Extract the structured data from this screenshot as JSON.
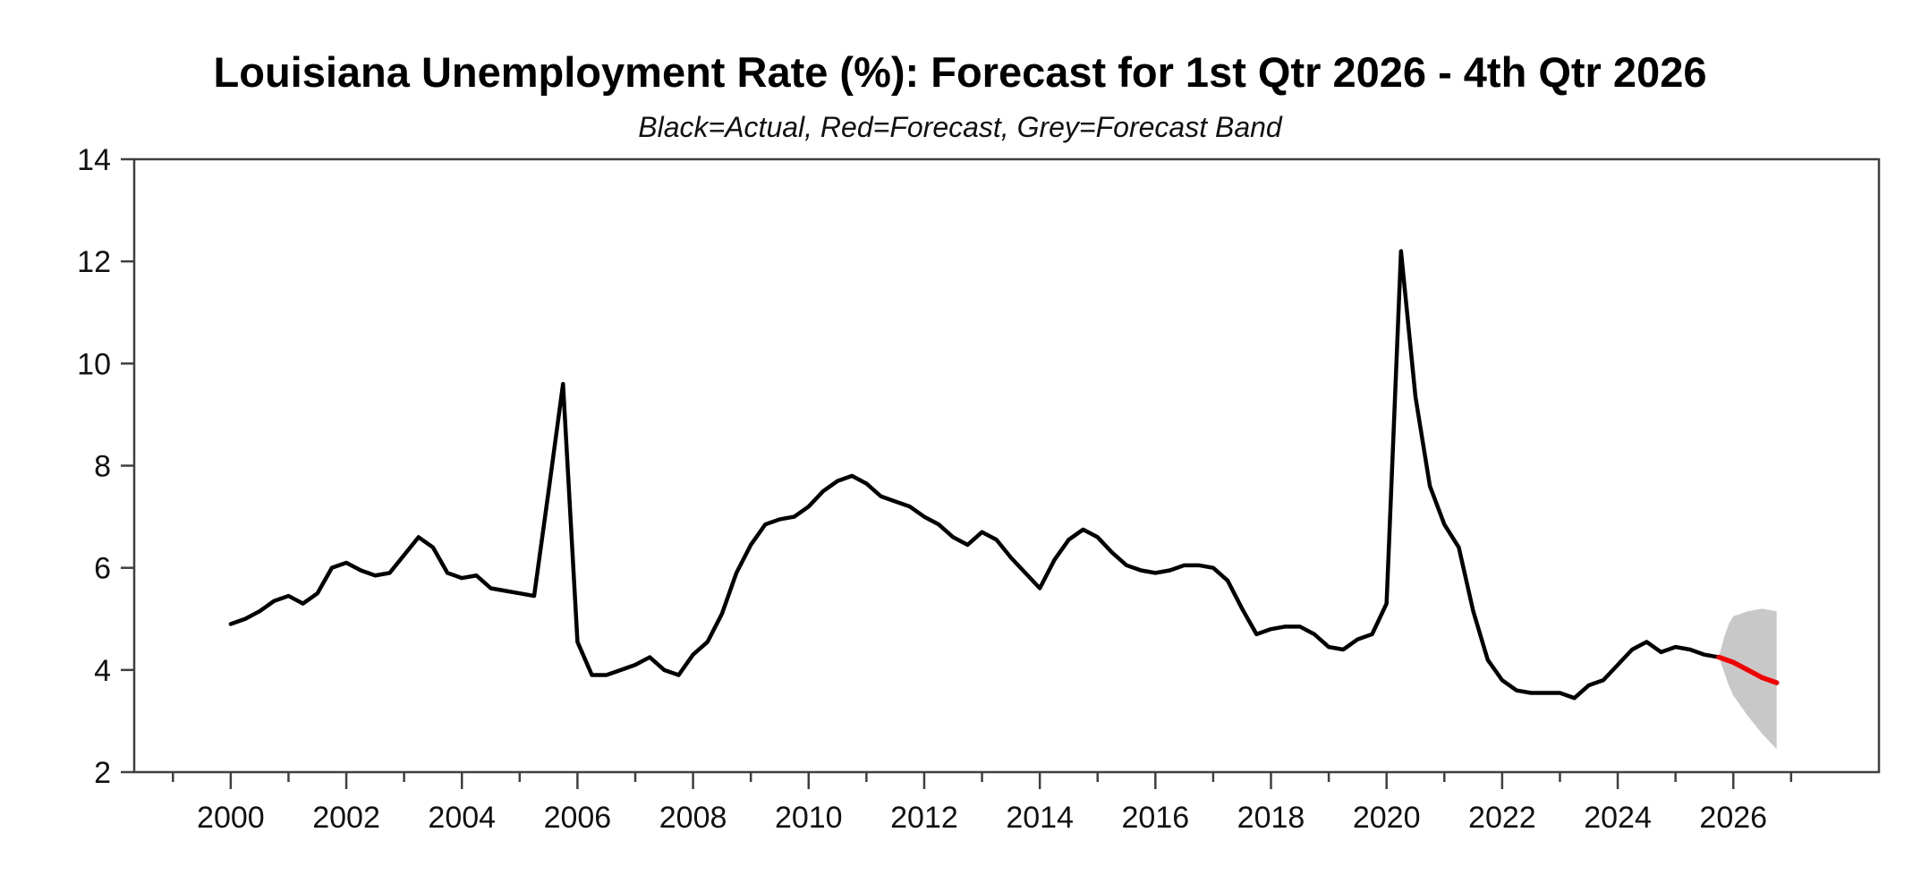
{
  "title": "Louisiana Unemployment Rate (%): Forecast for 1st Qtr 2026 - 4th Qtr 2026",
  "subtitle": "Black=Actual, Red=Forecast, Grey=Forecast Band",
  "colors": {
    "actual_line": "#000000",
    "forecast_line": "#f10000",
    "forecast_band": "#c8c8c8",
    "frame": "#3f3f3f",
    "text": "#111111"
  },
  "axes": {
    "y": {
      "min": 2,
      "max": 14,
      "ticks": [
        2,
        4,
        6,
        8,
        10,
        12,
        14
      ]
    },
    "x": {
      "min": 1998.33,
      "max": 2028.52,
      "major_ticks": [
        2000,
        2002,
        2004,
        2006,
        2008,
        2010,
        2012,
        2014,
        2016,
        2018,
        2020,
        2022,
        2024,
        2026
      ],
      "minor_ticks": [
        1999,
        2001,
        2003,
        2005,
        2007,
        2009,
        2011,
        2013,
        2015,
        2017,
        2019,
        2021,
        2023,
        2025,
        2027
      ]
    }
  },
  "chart_data": {
    "type": "line",
    "x_unit": "quarterly",
    "series_legend": [
      {
        "name": "Actual",
        "color": "black"
      },
      {
        "name": "Forecast",
        "color": "red"
      },
      {
        "name": "Forecast Band",
        "color": "grey"
      }
    ],
    "actual": {
      "name": "Actual",
      "start": "2000Q1",
      "values": [
        4.9,
        5.0,
        5.15,
        5.35,
        5.45,
        5.3,
        5.5,
        6.0,
        6.1,
        5.95,
        5.85,
        5.9,
        6.25,
        6.6,
        6.4,
        5.9,
        5.8,
        5.85,
        5.6,
        5.55,
        5.5,
        5.45,
        7.5,
        9.6,
        4.55,
        3.9,
        3.9,
        4.0,
        4.1,
        4.25,
        4.0,
        3.9,
        4.3,
        4.55,
        5.1,
        5.9,
        6.45,
        6.85,
        6.95,
        7.0,
        7.2,
        7.5,
        7.7,
        7.8,
        7.65,
        7.4,
        7.3,
        7.2,
        7.0,
        6.85,
        6.6,
        6.45,
        6.7,
        6.55,
        6.2,
        5.9,
        5.6,
        6.15,
        6.55,
        6.75,
        6.6,
        6.3,
        6.05,
        5.95,
        5.9,
        5.95,
        6.05,
        6.05,
        6.0,
        5.75,
        5.2,
        4.7,
        4.8,
        4.85,
        4.85,
        4.7,
        4.45,
        4.4,
        4.6,
        4.7,
        5.3,
        12.2,
        9.35,
        7.6,
        6.85,
        6.4,
        5.15,
        4.2,
        3.8,
        3.6,
        3.55,
        3.55,
        3.55,
        3.45,
        3.7,
        3.8,
        4.1,
        4.4,
        4.55,
        4.35,
        4.45,
        4.4,
        4.3,
        4.25
      ]
    },
    "forecast": {
      "name": "Forecast",
      "start": "2025Q4",
      "values": [
        4.25,
        4.15,
        4.0,
        3.85,
        3.75
      ]
    },
    "band": {
      "name": "Forecast Band",
      "t": [
        2025.75,
        2025.83,
        2025.92,
        2026.0,
        2026.25,
        2026.5,
        2026.75
      ],
      "upper": [
        4.25,
        4.6,
        4.9,
        5.05,
        5.15,
        5.2,
        5.15
      ],
      "lower": [
        4.25,
        4.0,
        3.7,
        3.5,
        3.1,
        2.75,
        2.45
      ]
    }
  }
}
